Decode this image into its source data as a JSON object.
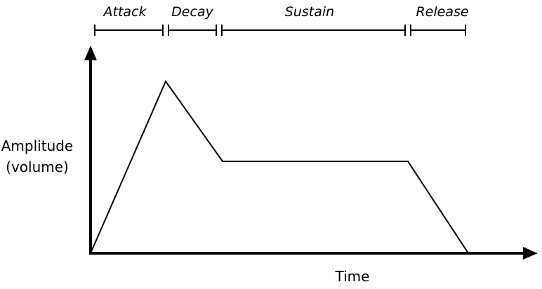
{
  "phases": [
    {
      "label": "Attack"
    },
    {
      "label": "Decay"
    },
    {
      "label": "Sustain"
    },
    {
      "label": "Release"
    }
  ],
  "axes": {
    "y_label_line1": "Amplitude",
    "y_label_line2": "(volume)",
    "x_label": "Time"
  },
  "colors": {
    "ink": "#000000",
    "background": "#ffffff"
  }
}
